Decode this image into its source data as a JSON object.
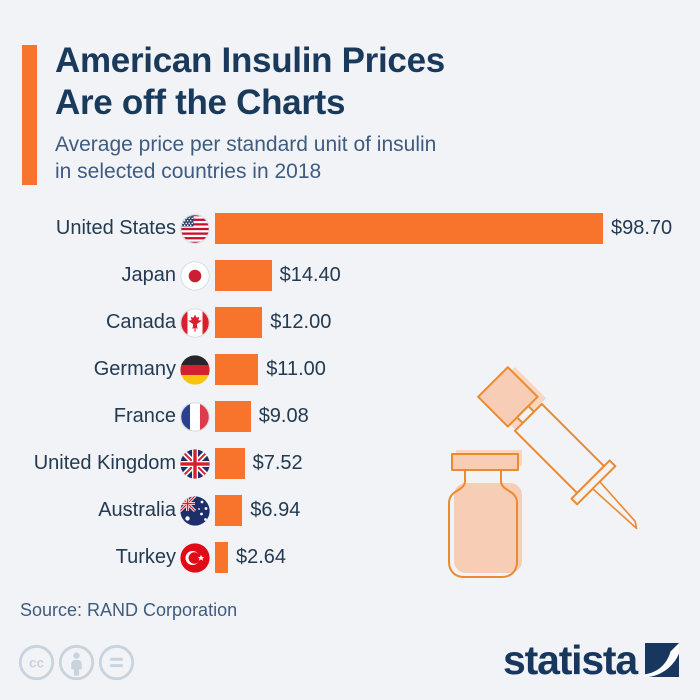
{
  "header": {
    "title_line1": "American Insulin Prices",
    "title_line2": "Are off the Charts",
    "subtitle_line1": "Average price per standard unit of insulin",
    "subtitle_line2": "in selected countries in 2018"
  },
  "chart_data": {
    "type": "bar",
    "orientation": "horizontal",
    "title": "American Insulin Prices Are off the Charts",
    "subtitle": "Average price per standard unit of insulin in selected countries in 2018",
    "categories": [
      "United States",
      "Japan",
      "Canada",
      "Germany",
      "France",
      "United Kingdom",
      "Australia",
      "Turkey"
    ],
    "values": [
      98.7,
      14.4,
      12.0,
      11.0,
      9.08,
      7.52,
      6.94,
      2.64
    ],
    "value_labels": [
      "$98.70",
      "$14.40",
      "$12.00",
      "$11.00",
      "$9.08",
      "$7.52",
      "$6.94",
      "$2.64"
    ],
    "flags": [
      "flag-united-states",
      "flag-japan",
      "flag-canada",
      "flag-germany",
      "flag-france",
      "flag-united-kingdom",
      "flag-australia",
      "flag-turkey"
    ],
    "xlabel": "",
    "ylabel": "",
    "xlim": [
      0,
      98.7
    ],
    "grid": false,
    "legend": "none",
    "bar_color": "#F8732B"
  },
  "footer": {
    "source": "Source: RAND Corporation",
    "brand": "statista",
    "license_icons": [
      "cc-icon",
      "attribution-icon",
      "nd-icon"
    ]
  },
  "colors": {
    "background": "#F1F3F6",
    "accent_orange": "#F8732B",
    "title_navy": "#1A3A5C",
    "subtitle_slate": "#3E5C80",
    "label_navy": "#233A52",
    "illustration_outline": "#EC8A30",
    "illustration_fill": "#F8CDB5",
    "license_gray": "#C9D3DD",
    "brand_navy": "#17375E"
  }
}
